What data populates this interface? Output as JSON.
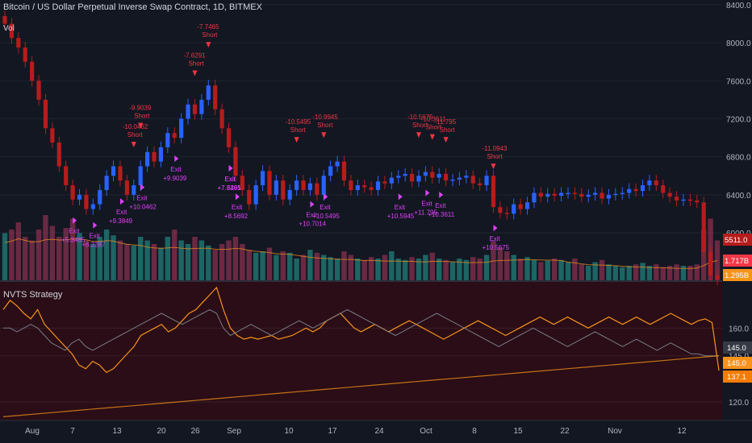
{
  "header": {
    "symbol_title": "Bitcoin / US Dollar Perpetual Inverse Swap Contract, 1D, BITMEX",
    "vol_label": "Vol"
  },
  "strategy": {
    "name": "NVTS Strategy"
  },
  "colors": {
    "background": "#131722",
    "bull_candle": "#2962ff",
    "bear_candle": "#b71c1c",
    "short_marker": "#f23645",
    "exit_marker": "#e040fb",
    "vol_up": "#26a69a",
    "vol_down": "#b2385e",
    "orange_line": "#f7931a",
    "pane_bg": "#2a0d16"
  },
  "chart_data": [
    {
      "type": "candlestick",
      "title": "Bitcoin / US Dollar Perpetual Inverse Swap Contract, 1D, BITMEX",
      "y_axis": {
        "ticks": [
          6000.0,
          6400.0,
          6800.0,
          7200.0,
          7600.0,
          8000.0,
          8400.0
        ],
        "range": [
          5500,
          8450
        ]
      },
      "x_axis": {
        "tick_labels": [
          "Aug",
          "7",
          "13",
          "20",
          "26",
          "Sep",
          "10",
          "17",
          "24",
          "Oct",
          "8",
          "15",
          "22",
          "Nov",
          "12"
        ]
      },
      "price_labels": {
        "last": "5511.0",
        "vol_a": "1.717B",
        "vol_b": "1.295B"
      },
      "close_series": [
        8200,
        8050,
        7950,
        7800,
        7600,
        7400,
        7100,
        6950,
        6700,
        6500,
        6350,
        6400,
        6250,
        6300,
        6450,
        6600,
        6700,
        6550,
        6400,
        6500,
        6700,
        6850,
        6750,
        6900,
        7050,
        7000,
        7200,
        7350,
        7250,
        7400,
        7550,
        7300,
        7100,
        6900,
        6600,
        6450,
        6300,
        6500,
        6650,
        6400,
        6550,
        6350,
        6450,
        6550,
        6450,
        6520,
        6400,
        6600,
        6700,
        6750,
        6550,
        6450,
        6500,
        6480,
        6450,
        6540,
        6520,
        6580,
        6600,
        6620,
        6540,
        6600,
        6640,
        6580,
        6620,
        6550,
        6560,
        6580,
        6600,
        6520,
        6500,
        6600,
        6270,
        6210,
        6200,
        6300,
        6250,
        6320,
        6420,
        6380,
        6410,
        6390,
        6420,
        6420,
        6410,
        6380,
        6400,
        6420,
        6360,
        6400,
        6410,
        6420,
        6460,
        6440,
        6500,
        6550,
        6500,
        6420,
        6380,
        6340,
        6350,
        6340,
        6320,
        5800,
        5550,
        5511
      ],
      "series": [
        {
          "name": "Short",
          "labels": [
            "-7.6291",
            "-7.7465",
            "-9.9039",
            "-10.5495",
            "-10.9945",
            "-10.5675",
            "-11.0943",
            "-11.795",
            "-10.3611",
            "-10.0462"
          ]
        },
        {
          "name": "Exit",
          "labels": [
            "+7.6291",
            "+9.9039",
            "+10.0462",
            "+10.7014",
            "+10.5495",
            "+10.5945",
            "+11.795",
            "+10.3611",
            "+10.5675",
            "+8.5692",
            "+7.7465",
            "+6.3287",
            "+9.3849",
            "+5.3485"
          ]
        }
      ],
      "volume": [
        0.65,
        0.7,
        0.8,
        0.6,
        0.55,
        0.7,
        0.9,
        0.75,
        0.6,
        0.72,
        0.85,
        0.65,
        0.55,
        0.5,
        0.6,
        0.7,
        0.62,
        0.55,
        0.5,
        0.48,
        0.6,
        0.55,
        0.5,
        0.45,
        0.6,
        0.7,
        0.55,
        0.5,
        0.6,
        0.55,
        0.48,
        0.42,
        0.5,
        0.55,
        0.6,
        0.5,
        0.42,
        0.38,
        0.4,
        0.45,
        0.35,
        0.4,
        0.38,
        0.3,
        0.35,
        0.42,
        0.38,
        0.35,
        0.32,
        0.3,
        0.4,
        0.35,
        0.3,
        0.28,
        0.32,
        0.3,
        0.35,
        0.4,
        0.3,
        0.28,
        0.32,
        0.3,
        0.35,
        0.38,
        0.3,
        0.28,
        0.25,
        0.3,
        0.28,
        0.32,
        0.3,
        0.35,
        0.55,
        0.45,
        0.4,
        0.35,
        0.3,
        0.32,
        0.28,
        0.25,
        0.27,
        0.3,
        0.28,
        0.25,
        0.3,
        0.22,
        0.2,
        0.25,
        0.28,
        0.22,
        0.2,
        0.18,
        0.2,
        0.22,
        0.24,
        0.2,
        0.22,
        0.18,
        0.2,
        0.22,
        0.2,
        0.2,
        0.22,
        0.7,
        0.85,
        0.55
      ]
    },
    {
      "type": "line",
      "title": "NVTS Strategy",
      "y_axis": {
        "ticks": [
          120.0,
          145.0,
          160.0
        ],
        "range": [
          110,
          185
        ]
      },
      "price_labels": {
        "a": "145.0",
        "b": "145.0",
        "c": "137.1"
      },
      "series": [
        {
          "color": "#f7931a",
          "values": [
            170,
            175,
            172,
            168,
            165,
            170,
            162,
            158,
            154,
            150,
            146,
            140,
            138,
            142,
            140,
            136,
            138,
            142,
            146,
            150,
            156,
            158,
            160,
            162,
            158,
            160,
            164,
            168,
            170,
            174,
            178,
            182,
            170,
            160,
            156,
            154,
            155,
            154,
            155,
            156,
            154,
            155,
            156,
            158,
            160,
            158,
            160,
            164,
            166,
            168,
            164,
            160,
            158,
            160,
            162,
            160,
            158,
            160,
            162,
            164,
            162,
            160,
            158,
            156,
            154,
            156,
            158,
            160,
            162,
            164,
            162,
            160,
            158,
            156,
            158,
            160,
            162,
            164,
            166,
            164,
            162,
            164,
            166,
            164,
            162,
            160,
            162,
            164,
            166,
            164,
            162,
            164,
            166,
            164,
            162,
            164,
            166,
            168,
            166,
            164,
            162,
            164,
            165,
            163,
            137
          ]
        },
        {
          "color": "#787b86",
          "values": [
            160,
            160,
            158,
            160,
            162,
            160,
            156,
            152,
            150,
            148,
            152,
            154,
            150,
            148,
            150,
            152,
            154,
            156,
            158,
            160,
            162,
            164,
            166,
            168,
            166,
            164,
            162,
            164,
            166,
            168,
            170,
            168,
            160,
            156,
            158,
            160,
            162,
            160,
            158,
            156,
            158,
            160,
            162,
            164,
            162,
            160,
            162,
            164,
            166,
            168,
            170,
            168,
            166,
            164,
            162,
            160,
            158,
            156,
            158,
            160,
            162,
            164,
            166,
            168,
            166,
            164,
            162,
            160,
            158,
            156,
            154,
            152,
            150,
            152,
            154,
            156,
            158,
            160,
            158,
            156,
            154,
            152,
            150,
            152,
            154,
            156,
            158,
            156,
            154,
            152,
            150,
            152,
            154,
            152,
            150,
            148,
            150,
            152,
            150,
            148,
            146,
            146,
            145,
            145,
            145
          ]
        },
        {
          "color": "#f7931a",
          "values": [
            112,
            113,
            114,
            115,
            116,
            117,
            118,
            119,
            120,
            121,
            122,
            123,
            124,
            125,
            126,
            127,
            128,
            129,
            130,
            131,
            132,
            133,
            134,
            135,
            136,
            137,
            138,
            139,
            140,
            141,
            142,
            143,
            144,
            145
          ]
        }
      ]
    }
  ]
}
